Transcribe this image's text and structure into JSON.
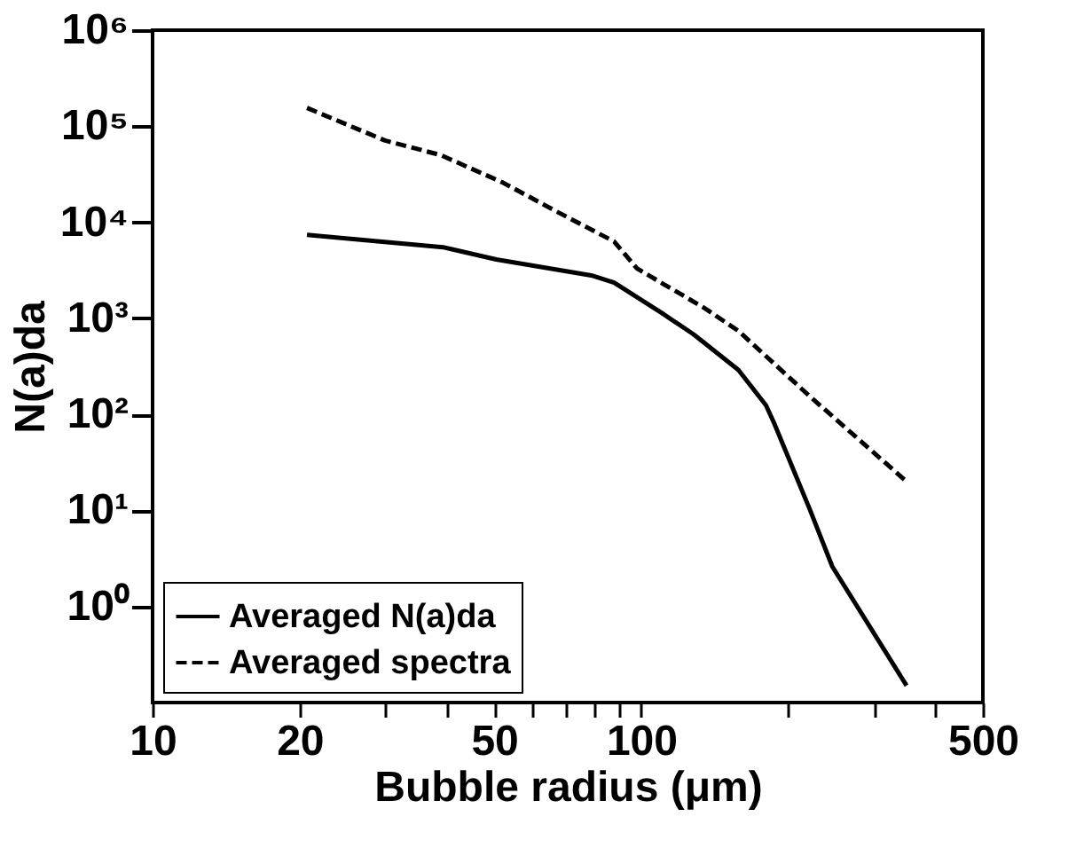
{
  "chart_data": {
    "type": "line",
    "xlabel": "Bubble radius (μm)",
    "ylabel": "N(a)da",
    "log": "xy",
    "xlim": [
      10,
      500
    ],
    "ylim": [
      0.1,
      1000000
    ],
    "xticks": [
      10,
      20,
      {
        "value": 30,
        "label": null
      },
      {
        "value": 40,
        "label": null
      },
      50,
      {
        "value": 60,
        "label": null
      },
      {
        "value": 70,
        "label": null
      },
      {
        "value": 80,
        "label": null
      },
      {
        "value": 90,
        "label": null
      },
      100,
      {
        "value": 200,
        "label": null
      },
      {
        "value": 300,
        "label": null
      },
      {
        "value": 400,
        "label": null
      },
      500
    ],
    "yticks": [
      {
        "value": 1,
        "label": "10⁰"
      },
      {
        "value": 10,
        "label": "10¹"
      },
      {
        "value": 100,
        "label": "10²"
      },
      {
        "value": 1000,
        "label": "10³"
      },
      {
        "value": 10000,
        "label": "10⁴"
      },
      {
        "value": 100000,
        "label": "10⁵"
      },
      {
        "value": 1000000,
        "label": "10⁶"
      }
    ],
    "grid": false,
    "legend": "bottom left",
    "marker": "none",
    "series": [
      {
        "name": "Averaged N(a)da",
        "color": "#000000",
        "line_style": "solid",
        "x": [
          20.7,
          39.3,
          50.5,
          79,
          88,
          110,
          128,
          158,
          180,
          187,
          221,
          246,
          349
        ],
        "values": [
          7400,
          5500,
          4100,
          2800,
          2350,
          1140,
          680,
          290,
          124,
          81,
          10.4,
          2.6,
          0.15
        ]
      },
      {
        "name": "Averaged spectra",
        "color": "#000000",
        "line_style": "dashed",
        "x": [
          20.7,
          29.9,
          38.9,
          52,
          67,
          88,
          98,
          134,
          158,
          221,
          349
        ],
        "values": [
          155000,
          71000,
          50000,
          26000,
          13000,
          6300,
          3300,
          1300,
          740,
          155,
          20
        ]
      }
    ]
  }
}
